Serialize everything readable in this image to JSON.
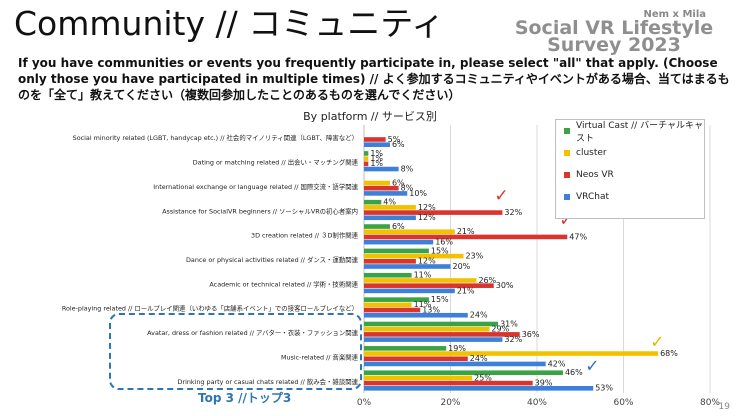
{
  "page": {
    "title": "Community // コミュニティ",
    "brand_small": "Nem x Mila",
    "brand_line1": "Social VR Lifestyle",
    "brand_line2": "Survey 2023",
    "question": "If you have communities or events you frequently participate in, please select \"all\" that apply. (Choose only those you have participated in multiple times) // よく参加するコミュニティやイベントがある場合、当てはまるものを「全て」教えてください（複数回参加したことのあるものを選んでください）",
    "page_number": "19",
    "top3_label": "Top 3 //トップ3"
  },
  "colors": {
    "virtualcast": "#3aa346",
    "cluster": "#f2c200",
    "neos": "#d9352e",
    "vrchat": "#3d7fd9",
    "grid": "#d9d9d9",
    "check_red": "#d9352e",
    "check_yellow": "#e6b800",
    "check_blue": "#2e75b6"
  },
  "chart_data": {
    "type": "bar",
    "orientation": "horizontal",
    "title": "By platform // サービス別",
    "xlim": [
      0,
      80
    ],
    "ticks": [
      "0%",
      "20%",
      "40%",
      "60%",
      "80%"
    ],
    "tick_values": [
      0,
      20,
      40,
      60,
      80
    ],
    "categories": [
      "Social minority related (LGBT, handycap etc.) // 社会的マイノリティ関連（LGBT、障害など）",
      "Dating or matching related // 出会い・マッチング関連",
      "International exchange or language related // 国際交流・語学関連",
      "Assistance for SocialVR beginners // ソーシャルVRの初心者案内",
      "3D creation related // ３D制作関連",
      "Dance or physical activities related // ダンス・運動関連",
      "Academic or technical related // 学術・技術関連",
      "Role-playing related // ロールプレイ関連（いわゆる「店舗系イベント」での接客ロールプレイなど）",
      "Avatar, dress or fashion related // アバター・衣装・ファッション関連",
      "Music-related // 音楽関連",
      "Drinking party or casual chats related // 飲み会・雑談関連"
    ],
    "series": [
      {
        "name": "Virtual Cast // バーチャルキャスト",
        "key": "virtualcast",
        "values": [
          0,
          1,
          0,
          4,
          6,
          15,
          11,
          15,
          31,
          19,
          46
        ],
        "labels": [
          "",
          "1%",
          "",
          "4%",
          "6%",
          "15%",
          "11%",
          "15%",
          "31%",
          "19%",
          "46%"
        ]
      },
      {
        "name": "cluster",
        "key": "cluster",
        "values": [
          0,
          1,
          6,
          12,
          21,
          23,
          26,
          11,
          29,
          68,
          25
        ],
        "labels": [
          "",
          "1%",
          "6%",
          "12%",
          "21%",
          "23%",
          "26%",
          "11%",
          "29%",
          "68%",
          "25%"
        ]
      },
      {
        "name": "Neos VR",
        "key": "neos",
        "values": [
          5,
          1,
          8,
          32,
          47,
          12,
          30,
          13,
          36,
          24,
          39
        ],
        "labels": [
          "5%",
          "1%",
          "8%",
          "32%",
          "47%",
          "12%",
          "30%",
          "13%",
          "36%",
          "24%",
          "39%"
        ]
      },
      {
        "name": "VRChat",
        "key": "vrchat",
        "values": [
          6,
          8,
          10,
          12,
          16,
          20,
          21,
          24,
          32,
          42,
          53
        ],
        "labels": [
          "6%",
          "8%",
          "10%",
          "12%",
          "16%",
          "20%",
          "21%",
          "24%",
          "32%",
          "42%",
          "53%"
        ]
      }
    ],
    "checkmarks": [
      {
        "category_index": 3,
        "series": "neos",
        "color_key": "check_red",
        "glyph": "✓"
      },
      {
        "category_index": 4,
        "series": "neos",
        "color_key": "check_red",
        "glyph": "✓"
      },
      {
        "category_index": 9,
        "series": "cluster",
        "color_key": "check_yellow",
        "glyph": "✓"
      },
      {
        "category_index": 10,
        "series": "vrchat",
        "color_key": "check_blue",
        "glyph": "✓"
      }
    ]
  }
}
